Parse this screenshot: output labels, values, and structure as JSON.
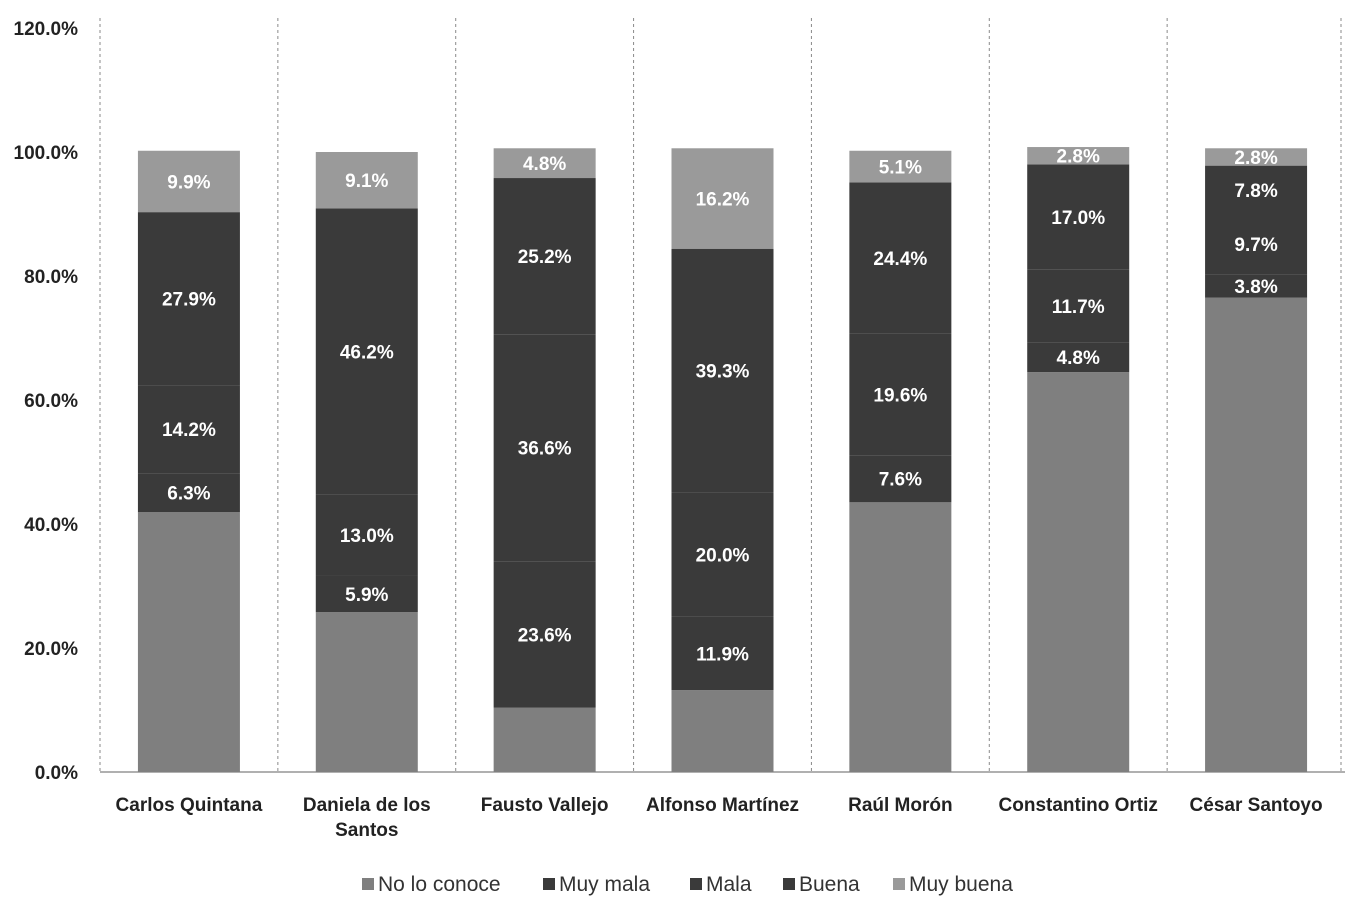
{
  "chart_data": {
    "type": "bar",
    "stacked": true,
    "categories": [
      [
        "Carlos Quintana"
      ],
      [
        "Daniela de los",
        "Santos"
      ],
      [
        "Fausto Vallejo"
      ],
      [
        "Alfonso Martínez"
      ],
      [
        "Raúl Morón"
      ],
      [
        "Constantino Ortiz"
      ],
      [
        "César Santoyo"
      ]
    ],
    "series": [
      {
        "name": "No lo conoce",
        "color": "#7f7f7f",
        "values": [
          41.9,
          25.8,
          10.4,
          13.2,
          43.5,
          64.5,
          76.5
        ],
        "labels": [
          "",
          "",
          "",
          "",
          "",
          "",
          ""
        ]
      },
      {
        "name": "Muy mala",
        "color": "#3a3a3a",
        "values": [
          6.3,
          5.9,
          23.6,
          11.9,
          7.6,
          4.8,
          3.8
        ],
        "labels": [
          "6.3%",
          "5.9%",
          "23.6%",
          "11.9%",
          "7.6%",
          "4.8%",
          "3.8%"
        ]
      },
      {
        "name": "Mala",
        "color": "#3a3a3a",
        "values": [
          14.2,
          13.0,
          36.6,
          20.0,
          19.6,
          11.7,
          9.7
        ],
        "labels": [
          "14.2%",
          "13.0%",
          "36.6%",
          "20.0%",
          "19.6%",
          "11.7%",
          "9.7%"
        ]
      },
      {
        "name": "Buena",
        "color": "#3a3a3a",
        "values": [
          27.9,
          46.2,
          25.2,
          39.3,
          24.4,
          17.0,
          7.8
        ],
        "labels": [
          "27.9%",
          "46.2%",
          "25.2%",
          "39.3%",
          "24.4%",
          "17.0%",
          "7.8%"
        ]
      },
      {
        "name": "Muy buena",
        "color": "#9a9a9a",
        "values": [
          9.9,
          9.1,
          4.8,
          16.2,
          5.1,
          2.8,
          2.8
        ],
        "labels": [
          "9.9%",
          "9.1%",
          "4.8%",
          "16.2%",
          "5.1%",
          "2.8%",
          "2.8%"
        ]
      }
    ],
    "ylim": [
      0,
      120
    ],
    "yticks": [
      "0.0%",
      "20.0%",
      "40.0%",
      "60.0%",
      "80.0%",
      "100.0%",
      "120.0%"
    ],
    "ytick_values": [
      0,
      20,
      40,
      60,
      80,
      100,
      120
    ],
    "legend_position": "bottom",
    "colors": {
      "no_conoce": "#7f7f7f",
      "muy_mala": "#3a3a3a",
      "mala": "#3a3a3a",
      "buena": "#3a3a3a",
      "muy_buena": "#9a9a9a"
    }
  }
}
